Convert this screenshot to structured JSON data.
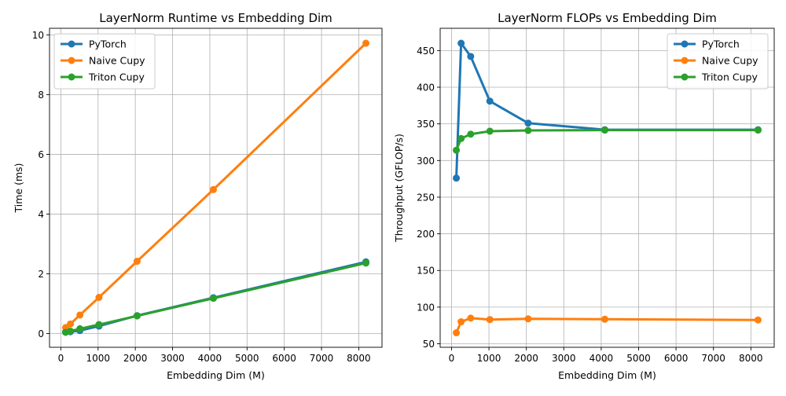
{
  "chart_data": [
    {
      "type": "line",
      "title": "LayerNorm Runtime vs Embedding Dim",
      "xlabel": "Embedding Dim (M)",
      "ylabel": "Time (ms)",
      "x": [
        128,
        256,
        512,
        1024,
        2048,
        4096,
        8192
      ],
      "xlim": [
        -304,
        8624
      ],
      "ylim": [
        -0.46,
        10.22
      ],
      "xticks": [
        0,
        1000,
        2000,
        3000,
        4000,
        5000,
        6000,
        7000,
        8000
      ],
      "yticks": [
        0,
        2,
        4,
        6,
        8,
        10
      ],
      "grid": true,
      "legend": "top-left",
      "series": [
        {
          "name": "PyTorch",
          "color": "#1f77b4",
          "values": [
            0.05,
            0.06,
            0.1,
            0.25,
            0.6,
            1.2,
            2.4
          ]
        },
        {
          "name": "Naive Cupy",
          "color": "#ff7f0e",
          "values": [
            0.2,
            0.32,
            0.62,
            1.21,
            2.42,
            4.82,
            9.72
          ]
        },
        {
          "name": "Triton Cupy",
          "color": "#2ca02c",
          "values": [
            0.04,
            0.08,
            0.16,
            0.3,
            0.59,
            1.18,
            2.36
          ]
        }
      ]
    },
    {
      "type": "line",
      "title": "LayerNorm FLOPs vs Embedding Dim",
      "xlabel": "Embedding Dim (M)",
      "ylabel": "Throughput (GFLOP/s)",
      "x": [
        128,
        256,
        512,
        1024,
        2048,
        4096,
        8192
      ],
      "xlim": [
        -304,
        8624
      ],
      "ylim": [
        45.2,
        480.4
      ],
      "xticks": [
        0,
        1000,
        2000,
        3000,
        4000,
        5000,
        6000,
        7000,
        8000
      ],
      "yticks": [
        50,
        100,
        150,
        200,
        250,
        300,
        350,
        400,
        450
      ],
      "grid": true,
      "legend": "top-right",
      "series": [
        {
          "name": "PyTorch",
          "color": "#1f77b4",
          "values": [
            276,
            460,
            442,
            381,
            351,
            342,
            342
          ]
        },
        {
          "name": "Naive Cupy",
          "color": "#ff7f0e",
          "values": [
            65,
            80,
            85,
            83,
            84,
            83.5,
            82.5
          ]
        },
        {
          "name": "Triton Cupy",
          "color": "#2ca02c",
          "values": [
            314,
            330,
            336,
            340,
            341,
            341.5,
            341.5
          ]
        }
      ]
    }
  ]
}
